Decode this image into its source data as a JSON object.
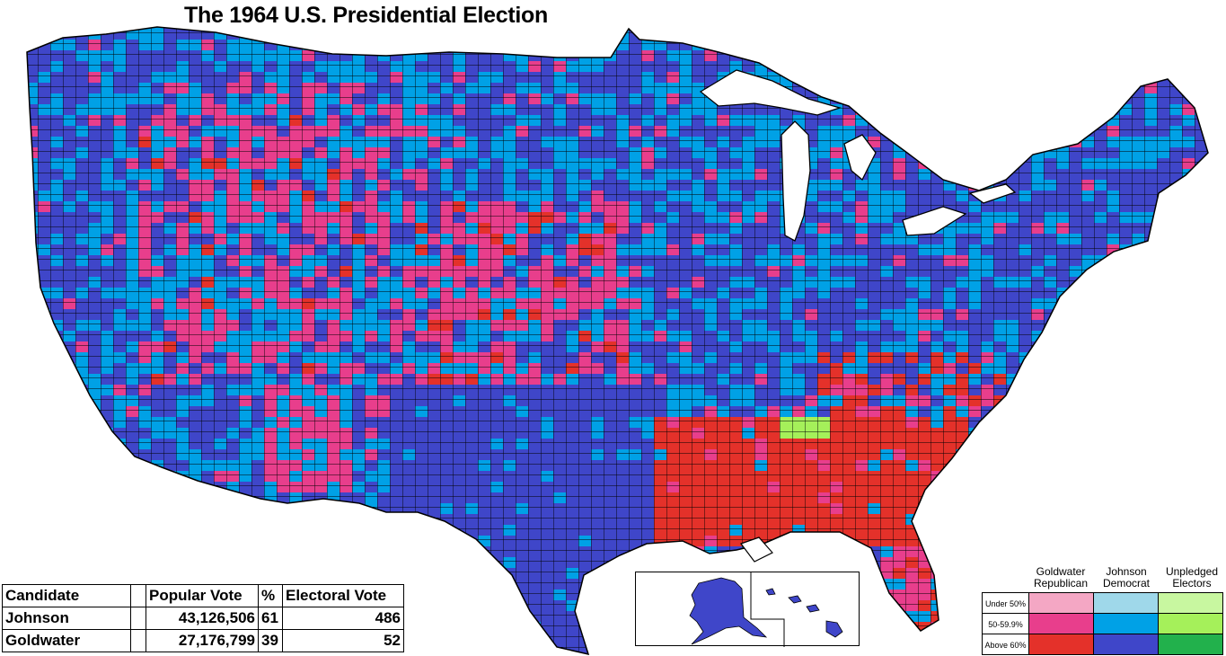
{
  "title": "The 1964 U.S. Presidential Election",
  "results_table": {
    "headers": [
      "Candidate",
      "",
      "Popular Vote",
      "%",
      "Electoral Vote"
    ],
    "rows": [
      {
        "candidate": "Johnson",
        "popular_vote": "43,126,506",
        "percent": "61",
        "electoral_vote": "486"
      },
      {
        "candidate": "Goldwater",
        "popular_vote": "27,176,799",
        "percent": "39",
        "electoral_vote": "52"
      }
    ]
  },
  "legend": {
    "columns": [
      {
        "label_line1": "Goldwater",
        "label_line2": "Republican"
      },
      {
        "label_line1": "Johnson",
        "label_line2": "Democrat"
      },
      {
        "label_line1": "Unpledged",
        "label_line2": "Electors"
      }
    ],
    "rows": [
      {
        "label": "Under 50%",
        "colors": [
          "#f4a7c4",
          "#9fd8ea",
          "#c8f7a0"
        ]
      },
      {
        "label": "50-59.9%",
        "colors": [
          "#e83e8c",
          "#00a1e6",
          "#a5f05a"
        ]
      },
      {
        "label": "Above 60%",
        "colors": [
          "#e4312a",
          "#3f46c9",
          "#22b14c"
        ]
      }
    ]
  },
  "colors": {
    "johnson_above_60": "#3f46c9",
    "johnson_50_60": "#00a1e6",
    "johnson_under_50": "#9fd8ea",
    "goldwater_above_60": "#e4312a",
    "goldwater_50_60": "#e83e8c",
    "goldwater_under_50": "#f4a7c4",
    "unpledged_50_60": "#a5f05a",
    "unpledged_above_60": "#22b14c"
  }
}
